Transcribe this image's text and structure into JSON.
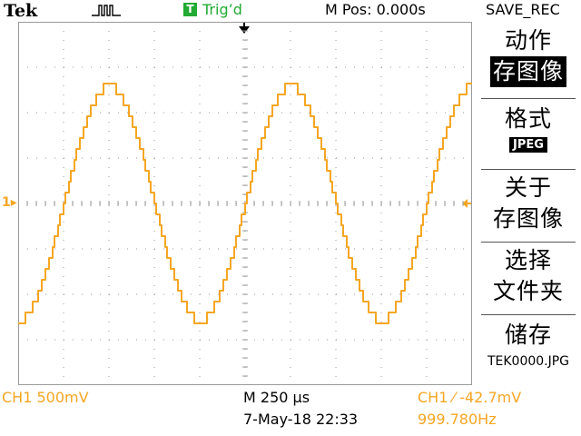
{
  "header": {
    "brand": "Tek",
    "trigger_status": "Trig’d",
    "trigger_icon_letter": "T",
    "horizontal_position": "M Pos: 0.000s",
    "menu_title": "SAVE_REC"
  },
  "side_menu": {
    "action": {
      "label": "动作",
      "value": "存图像"
    },
    "format": {
      "label": "格式",
      "value": "JPEG"
    },
    "about": {
      "line1": "关于",
      "line2": "存图像"
    },
    "select_folder": {
      "line1": "选择",
      "line2": "文件夹"
    },
    "save": {
      "label": "储存",
      "filename": "TEK0000.JPG"
    }
  },
  "status": {
    "ch1_scale": "CH1  500mV",
    "timebase": "M 250 µs",
    "datetime": "7-May-18 22:33",
    "trigger_level": "CH1  ⁄  -42.7mV",
    "frequency": "999.780Hz"
  },
  "channel_marker": "1",
  "colors": {
    "trace": "#f5a623",
    "grid": "#9a9a9a",
    "trigger_ok": "#22aa33"
  },
  "chart_data": {
    "type": "line",
    "x": [
      0,
      0.25,
      0.5,
      0.75,
      1,
      1.25,
      1.5,
      1.75,
      2,
      2.25,
      2.5
    ],
    "series": [
      {
        "values": [
          -1.3,
          0.13,
          1.3,
          0.13,
          -1.3,
          0.13,
          1.3,
          0.13,
          -1.3,
          0.13,
          1.3
        ]
      }
    ],
    "xlim": [
      0,
      2.5
    ],
    "ylim": [
      -2,
      2
    ],
    "grid": true
  }
}
